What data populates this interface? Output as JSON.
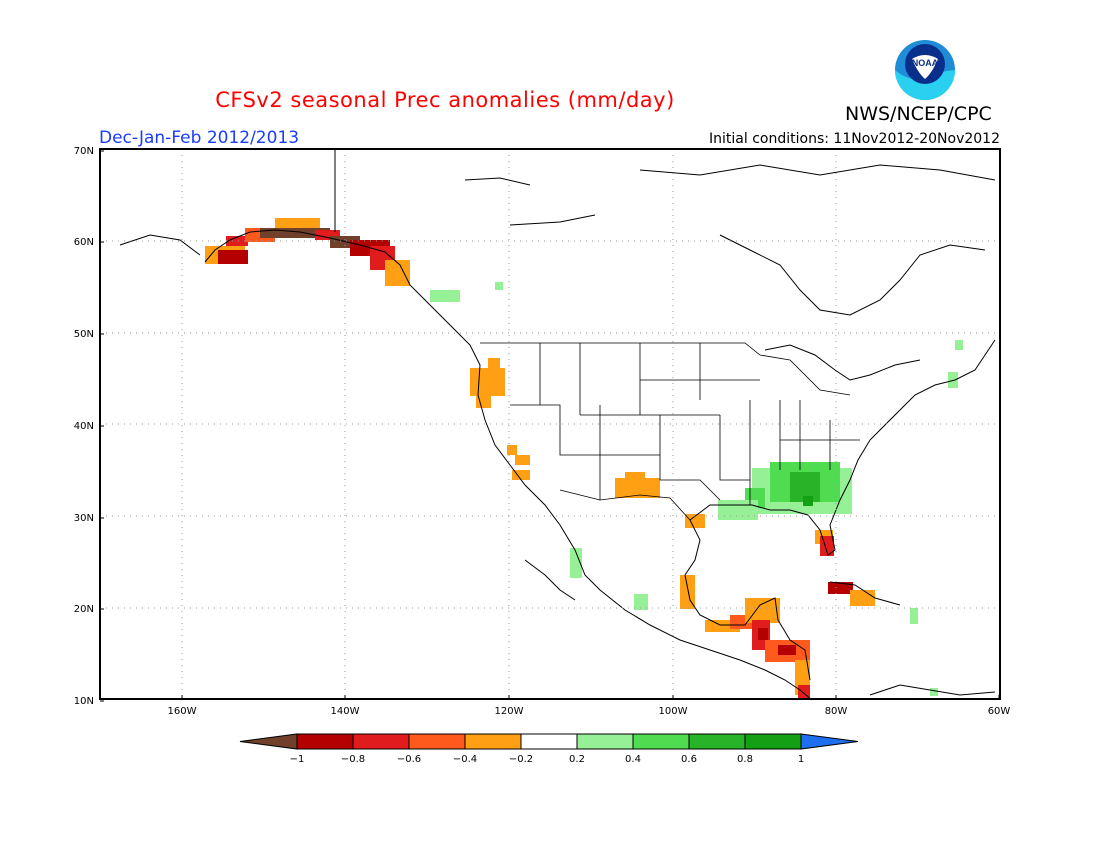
{
  "header": {
    "title": "CFSv2 seasonal Prec anomalies (mm/day)",
    "season": "Dec-Jan-Feb 2012/2013",
    "initial_conditions": "Initial conditions: 11Nov2012-20Nov2012",
    "agency": "NWS/NCEP/CPC",
    "logo_text": "NOAA"
  },
  "map": {
    "lat_labels": [
      "70N",
      "60N",
      "50N",
      "40N",
      "30N",
      "20N",
      "10N"
    ],
    "lon_labels": [
      "160W",
      "140W",
      "120W",
      "100W",
      "80W",
      "60W"
    ],
    "lon_range": [
      -170,
      -60
    ],
    "lat_range": [
      10,
      70
    ]
  },
  "colorbar": {
    "labels": [
      "-1",
      "-0.8",
      "-0.6",
      "-0.4",
      "-0.2",
      "0.2",
      "0.4",
      "0.6",
      "0.8",
      "1"
    ],
    "colors": [
      "#70402a",
      "#b40000",
      "#e01c1c",
      "#ff5a1e",
      "#ffa014",
      "#ffffff",
      "#96f096",
      "#50dc50",
      "#28b428",
      "#14a014",
      "#1e6ef0"
    ]
  },
  "anomaly_regions": [
    {
      "name": "alaska-coast",
      "color": "#e01c1c"
    },
    {
      "name": "alaska-coast-brown",
      "color": "#70402a"
    },
    {
      "name": "gulf-of-alaska",
      "color": "#ffa014"
    },
    {
      "name": "pacific-northwest",
      "color": "#ffa014"
    },
    {
      "name": "southwest",
      "color": "#ffa014"
    },
    {
      "name": "southeast-us",
      "color": "#50dc50"
    },
    {
      "name": "central-america",
      "color": "#ffa014"
    },
    {
      "name": "florida",
      "color": "#e01c1c"
    },
    {
      "name": "cuba",
      "color": "#e01c1c"
    }
  ]
}
